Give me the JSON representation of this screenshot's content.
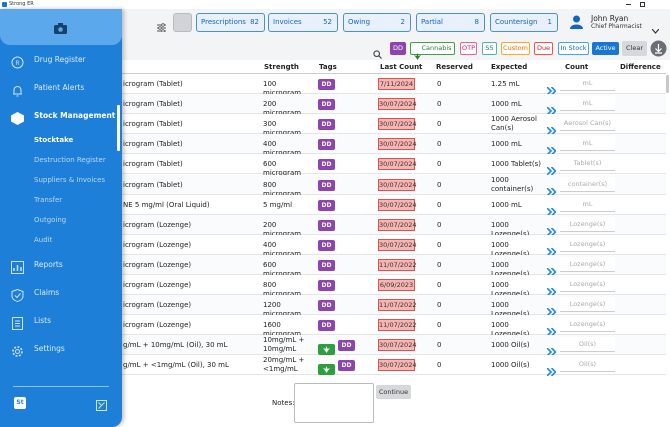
{
  "window": {
    "title": "Strong ER"
  },
  "sidebar": {
    "nav": [
      "Drug Register",
      "Patient Alerts",
      "Stock Management"
    ],
    "submenu": [
      "Stocktake",
      "Destruction Register",
      "Suppliers & Invoices",
      "Transfer",
      "Outgoing",
      "Audit"
    ],
    "nav_bottom": [
      "Reports",
      "Claims",
      "Lists",
      "Settings"
    ],
    "logo": "St"
  },
  "header": {
    "tabs": [
      {
        "label": "Prescriptions",
        "count": 82
      },
      {
        "label": "Invoices",
        "count": 52
      },
      {
        "label": "Owing",
        "count": 2
      },
      {
        "label": "Partial",
        "count": 8
      },
      {
        "label": "Countersign",
        "count": 1
      }
    ],
    "user": {
      "name": "John Ryan",
      "role": "Chief Pharmacist"
    }
  },
  "filters": {
    "tags": [
      "DD",
      "Cannabis",
      "OTP",
      "S5",
      "Custom",
      "Due",
      "In Stock",
      "Active"
    ],
    "clear": "Clear"
  },
  "table": {
    "columns": [
      "Strength",
      "Tags",
      "Last Count",
      "Reserved",
      "Expected",
      "Count",
      "Difference"
    ],
    "rows": [
      {
        "name": "icrogram (Tablet)",
        "strength": "100 microgram",
        "tags": [
          "DD"
        ],
        "cannabis": false,
        "last_count": "7/11/2024",
        "reserved": 0,
        "expected": "1.25 mL",
        "count_placeholder": "mL"
      },
      {
        "name": "icrogram (Tablet)",
        "strength": "200 microgram",
        "tags": [
          "DD"
        ],
        "cannabis": false,
        "last_count": "30/07/2024",
        "reserved": 0,
        "expected": "1000 mL",
        "count_placeholder": "mL"
      },
      {
        "name": "icrogram (Tablet)",
        "strength": "300 microgram",
        "tags": [
          "DD"
        ],
        "cannabis": false,
        "last_count": "30/07/2024",
        "reserved": 0,
        "expected": "1000 Aerosol Can(s)",
        "count_placeholder": "Aerosol Can(s)"
      },
      {
        "name": "icrogram (Tablet)",
        "strength": "400 microgram",
        "tags": [
          "DD"
        ],
        "cannabis": false,
        "last_count": "30/07/2024",
        "reserved": 0,
        "expected": "1000 mL",
        "count_placeholder": "mL"
      },
      {
        "name": "icrogram (Tablet)",
        "strength": "600 microgram",
        "tags": [
          "DD"
        ],
        "cannabis": false,
        "last_count": "30/07/2024",
        "reserved": 0,
        "expected": "1000 Tablet(s)",
        "count_placeholder": "Tablet(s)"
      },
      {
        "name": "icrogram (Tablet)",
        "strength": "800 microgram",
        "tags": [
          "DD"
        ],
        "cannabis": false,
        "last_count": "30/07/2024",
        "reserved": 0,
        "expected": "1000 container(s)",
        "count_placeholder": "container(s)"
      },
      {
        "name": "NE 5 mg/ml (Oral Liquid)",
        "strength": "5 mg/ml",
        "tags": [
          "DD"
        ],
        "cannabis": false,
        "last_count": "30/07/2024",
        "reserved": 0,
        "expected": "1000 mL",
        "count_placeholder": "mL"
      },
      {
        "name": "icrogram (Lozenge)",
        "strength": "200 microgram",
        "tags": [
          "DD"
        ],
        "cannabis": false,
        "last_count": "30/07/2024",
        "reserved": 0,
        "expected": "1000 Lozenge(s)",
        "count_placeholder": "Lozenge(s)"
      },
      {
        "name": "icrogram (Lozenge)",
        "strength": "400 microgram",
        "tags": [
          "DD"
        ],
        "cannabis": false,
        "last_count": "30/07/2024",
        "reserved": 0,
        "expected": "1000 Lozenge(s)",
        "count_placeholder": "Lozenge(s)"
      },
      {
        "name": "icrogram (Lozenge)",
        "strength": "600 microgram",
        "tags": [
          "DD"
        ],
        "cannabis": false,
        "last_count": "11/07/2022",
        "reserved": 0,
        "expected": "1000 Lozenge(s)",
        "count_placeholder": "Lozenge(s)"
      },
      {
        "name": "icrogram (Lozenge)",
        "strength": "800 microgram",
        "tags": [
          "DD"
        ],
        "cannabis": false,
        "last_count": "6/09/2023",
        "reserved": 0,
        "expected": "1000 Lozenge(s)",
        "count_placeholder": "Lozenge(s)"
      },
      {
        "name": "icrogram (Lozenge)",
        "strength": "1200 microgram",
        "tags": [
          "DD"
        ],
        "cannabis": false,
        "last_count": "11/07/2022",
        "reserved": 0,
        "expected": "1000 Lozenge(s)",
        "count_placeholder": "Lozenge(s)"
      },
      {
        "name": "icrogram (Lozenge)",
        "strength": "1600 microgram",
        "tags": [
          "DD"
        ],
        "cannabis": false,
        "last_count": "11/07/2022",
        "reserved": 0,
        "expected": "1000 Lozenge(s)",
        "count_placeholder": "Lozenge(s)"
      },
      {
        "name": "g/mL + 10mg/mL (Oil), 30 mL",
        "strength": "10mg/mL + 10mg/mL",
        "tags": [
          "DD"
        ],
        "cannabis": true,
        "last_count": "30/07/2024",
        "reserved": 0,
        "expected": "1000 Oil(s)",
        "count_placeholder": "Oil(s)"
      },
      {
        "name": "g/mL + <1mg/mL (Oil), 30 mL",
        "strength": "20mg/mL + <1mg/mL",
        "tags": [
          "DD"
        ],
        "cannabis": true,
        "last_count": "30/07/2024",
        "reserved": 0,
        "expected": "1000 Oil(s)",
        "count_placeholder": "Oil(s)"
      }
    ]
  },
  "notes": {
    "label": "Notes:",
    "button": "Continue"
  }
}
